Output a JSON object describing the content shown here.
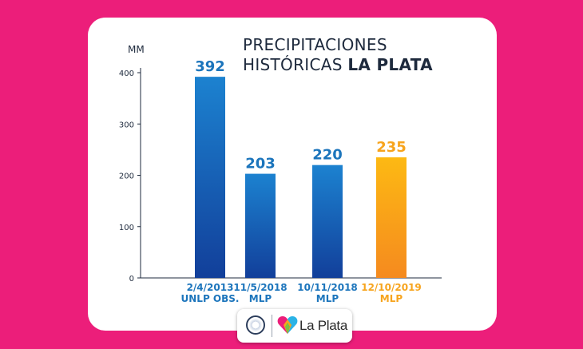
{
  "title": {
    "line1": "PRECIPITACIONES",
    "line2_prefix": "HISTÓRICAS ",
    "line2_bold": "LA PLATA"
  },
  "logo": {
    "brand": "La Plata"
  },
  "colors": {
    "background": "#ec1e7a",
    "bar_blue": "#1c75bc",
    "bar_orange": "#f7a41d",
    "text_dark": "#1e2a3d"
  },
  "chart_data": {
    "type": "bar",
    "title": "PRECIPITACIONES HISTÓRICAS LA PLATA",
    "ylabel": "MM",
    "ylim": [
      0,
      400
    ],
    "yticks": [
      0,
      100,
      200,
      300,
      400
    ],
    "categories": [
      {
        "date": "2/4/2013",
        "source": "UNLP OBS."
      },
      {
        "date": "11/5/2018",
        "source": "MLP"
      },
      {
        "date": "10/11/2018",
        "source": "MLP"
      },
      {
        "date": "12/10/2019",
        "source": "MLP"
      }
    ],
    "values": [
      392,
      203,
      220,
      235
    ],
    "bar_colors": [
      "blue",
      "blue",
      "blue",
      "orange"
    ],
    "grid": false
  }
}
